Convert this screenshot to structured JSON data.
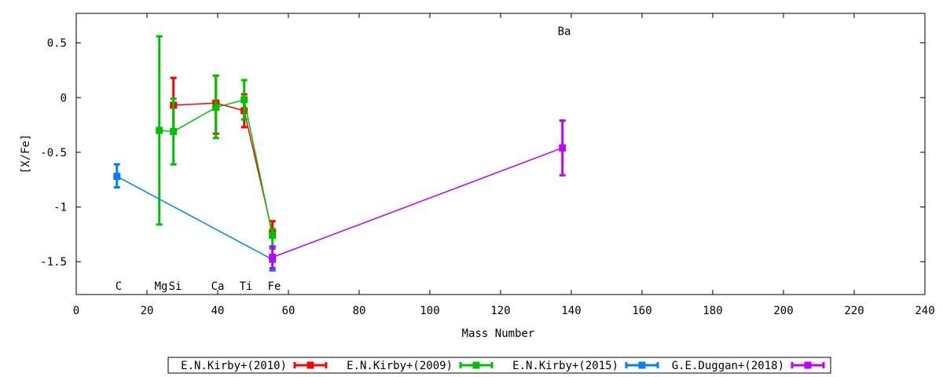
{
  "chart_data": {
    "type": "line",
    "xlabel": "Mass Number",
    "ylabel": "[X/Fe]",
    "xlim": [
      0,
      240
    ],
    "ylim": [
      -1.8,
      0.77
    ],
    "x_ticks": [
      0,
      20,
      40,
      60,
      80,
      100,
      120,
      140,
      160,
      180,
      200,
      220,
      240
    ],
    "y_ticks": [
      0.5,
      0,
      -0.5,
      -1,
      -1.5
    ],
    "x_tick_labels": [
      "0",
      "20",
      "40",
      "60",
      "80",
      "100",
      "120",
      "140",
      "160",
      "180",
      "200",
      "220",
      "240"
    ],
    "y_tick_labels": [
      "0.5",
      "0",
      "-0.5",
      "-1",
      "-1.5"
    ],
    "grid": false,
    "legend_position": "bottom-outside",
    "element_annotations": [
      {
        "label": "C",
        "x": 12,
        "y": -1.72
      },
      {
        "label": "Mg",
        "x": 24,
        "y": -1.72
      },
      {
        "label": "Si",
        "x": 28,
        "y": -1.72
      },
      {
        "label": "Ca",
        "x": 40,
        "y": -1.72
      },
      {
        "label": "Ti",
        "x": 48,
        "y": -1.72
      },
      {
        "label": "Fe",
        "x": 56,
        "y": -1.72
      },
      {
        "label": "Ba",
        "x": 138,
        "y": 0.61
      }
    ],
    "series": [
      {
        "name": "E.N.Kirby+(2010)",
        "color": "#ff0000",
        "points": [
          {
            "x": 27.5,
            "y": -0.07,
            "lo": -0.32,
            "hi": 0.18
          },
          {
            "x": 39.5,
            "y": -0.05,
            "lo": -0.33,
            "hi": 0.2
          },
          {
            "x": 47.5,
            "y": -0.12,
            "lo": -0.27,
            "hi": 0.03
          },
          {
            "x": 55.5,
            "y": -1.24,
            "lo": -1.24,
            "hi": -1.13
          }
        ]
      },
      {
        "name": "E.N.Kirby+(2009)",
        "color": "#00c000",
        "points": [
          {
            "x": 23.5,
            "y": -0.3,
            "lo": -1.16,
            "hi": 0.56
          },
          {
            "x": 27.5,
            "y": -0.31,
            "lo": -0.61,
            "hi": -0.01
          },
          {
            "x": 39.5,
            "y": -0.09,
            "lo": -0.37,
            "hi": 0.2
          },
          {
            "x": 47.5,
            "y": -0.02,
            "lo": -0.2,
            "hi": 0.16
          },
          {
            "x": 55.5,
            "y": -1.26,
            "lo": -1.37,
            "hi": -1.2
          }
        ]
      },
      {
        "name": "E.N.Kirby+(2015)",
        "color": "#0080ff",
        "points": [
          {
            "x": 11.5,
            "y": -0.72,
            "lo": -0.82,
            "hi": -0.61
          },
          {
            "x": 55.5,
            "y": -1.48,
            "lo": -1.58,
            "hi": -1.38
          }
        ]
      },
      {
        "name": "G.E.Duggan+(2018)",
        "color": "#c000ff",
        "points": [
          {
            "x": 55.5,
            "y": -1.46,
            "lo": -1.56,
            "hi": -1.36
          },
          {
            "x": 137.5,
            "y": -0.46,
            "lo": -0.71,
            "hi": -0.21
          }
        ]
      }
    ]
  }
}
